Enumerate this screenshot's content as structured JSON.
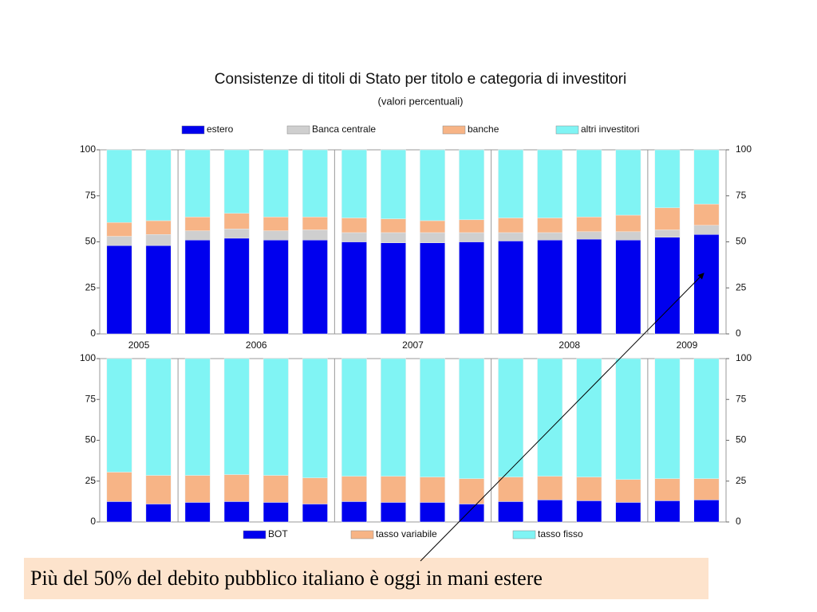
{
  "chart_data": [
    {
      "type": "stacked-bar",
      "title": "Consistenze di titoli di Stato per titolo e categoria di investitori",
      "subtitle": "(valori percentuali)",
      "categories": [
        "2005",
        null,
        "2006",
        null,
        null,
        null,
        "2007",
        null,
        null,
        null,
        "2008",
        null,
        null,
        null,
        "2009",
        null
      ],
      "series": [
        {
          "name": "estero",
          "color": "#0000ee",
          "values": [
            48,
            48,
            51,
            52,
            51,
            51,
            50,
            49.5,
            49.5,
            50,
            50.5,
            51,
            51.5,
            51,
            52.5,
            54
          ]
        },
        {
          "name": "Banca centrale",
          "color": "#cfcfcf",
          "values": [
            5,
            6,
            5,
            5,
            5,
            5.5,
            5,
            5.5,
            5.5,
            5,
            4.5,
            4,
            4,
            4.5,
            4,
            5
          ]
        },
        {
          "name": "banche",
          "color": "#f7b486",
          "values": [
            7.5,
            7.5,
            7.5,
            8.5,
            7.5,
            7,
            8,
            7.5,
            6.5,
            7,
            8,
            8,
            8,
            9,
            12,
            11.5
          ]
        },
        {
          "name": "altri investitori",
          "color": "#80f4f4",
          "values": [
            39.5,
            38.5,
            36.5,
            34.5,
            36.5,
            36.5,
            37,
            37.5,
            38.5,
            38,
            37,
            37,
            36.5,
            35.5,
            31.5,
            29.5
          ]
        }
      ],
      "ylim": [
        0,
        100
      ],
      "yticks": [
        0,
        25,
        50,
        75,
        100
      ],
      "legend": "top"
    },
    {
      "type": "stacked-bar",
      "series": [
        {
          "name": "BOT",
          "color": "#0000ee",
          "values": [
            12.5,
            11,
            12,
            12.5,
            12,
            11,
            12.5,
            12,
            12,
            11,
            12.5,
            13.5,
            13,
            12,
            13,
            13.5
          ]
        },
        {
          "name": "tasso variabile",
          "color": "#f7b486",
          "values": [
            18,
            17.5,
            16.5,
            16.5,
            16.5,
            16,
            15.5,
            16,
            15.5,
            15.5,
            15,
            14.5,
            14.5,
            14,
            13.5,
            13
          ]
        },
        {
          "name": "tasso fisso",
          "color": "#80f4f4",
          "values": [
            69.5,
            71.5,
            71.5,
            71,
            71.5,
            73,
            72,
            72,
            72.5,
            73.5,
            72.5,
            72,
            72.5,
            74,
            73.5,
            73.5
          ]
        }
      ],
      "ylim": [
        0,
        100
      ],
      "yticks": [
        0,
        25,
        50,
        75,
        100
      ],
      "legend": "bottom"
    }
  ],
  "caption": "Più del 50% del debito pubblico italiano è oggi in mani estere"
}
